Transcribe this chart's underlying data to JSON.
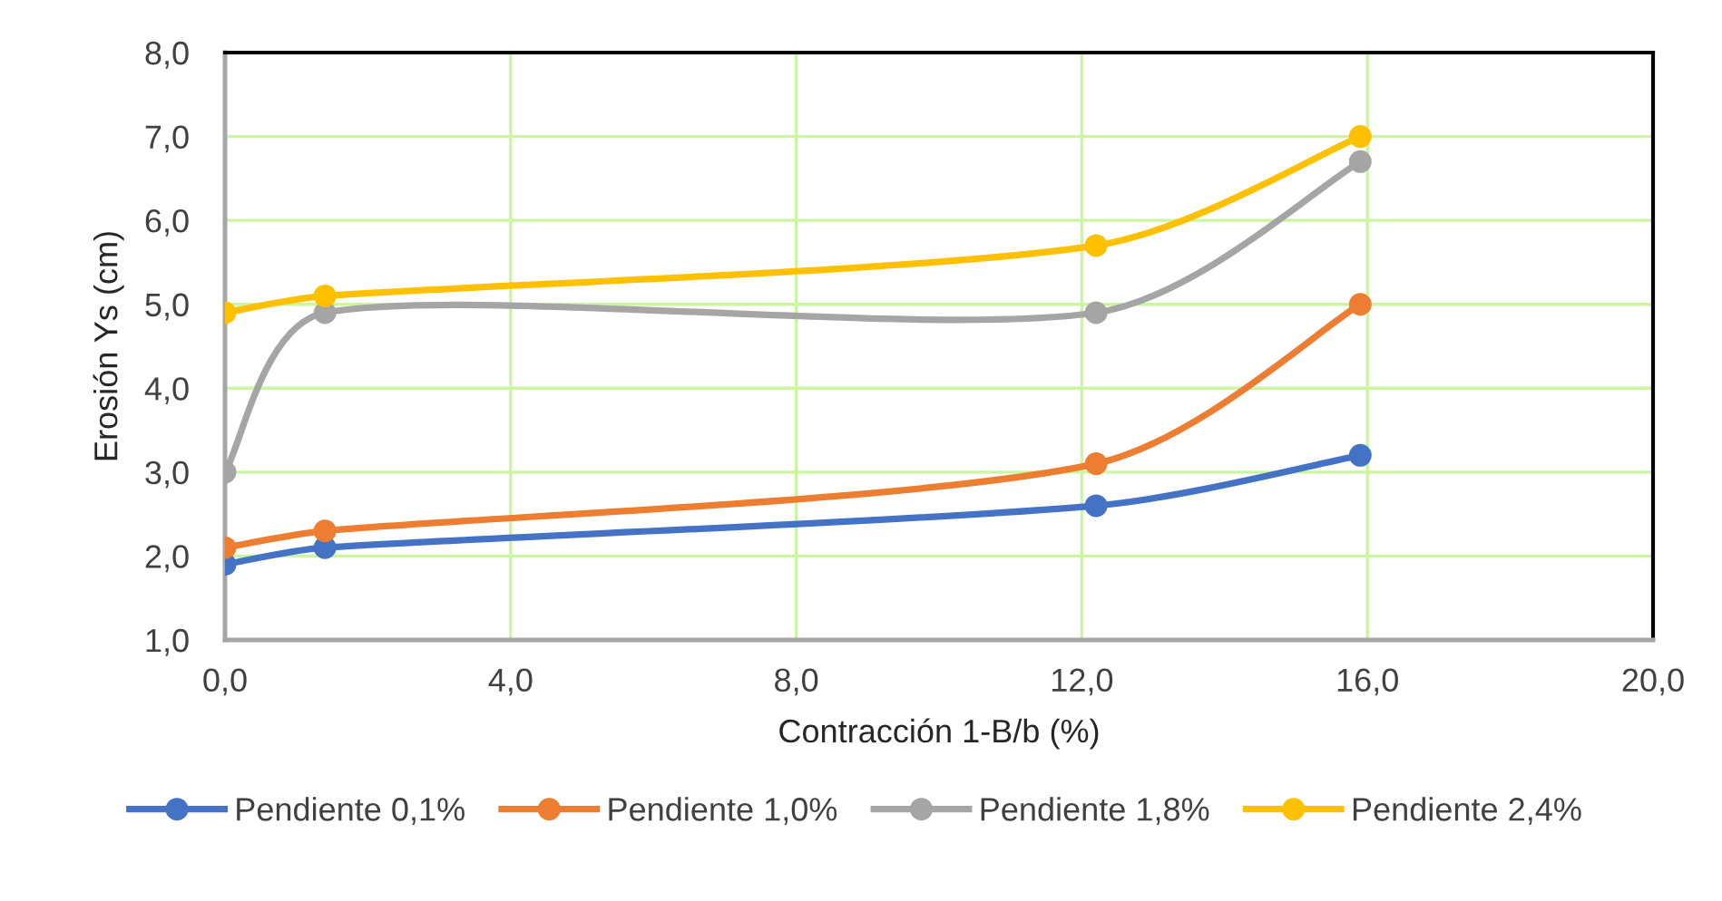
{
  "chart_data": {
    "type": "line",
    "xlabel": "Contracción 1-B/b (%)",
    "ylabel": "Erosión Ys (cm)",
    "x": [
      0,
      1.4,
      12.2,
      15.9
    ],
    "series": [
      {
        "name": "Pendiente 0,1%",
        "color": "#4472c4",
        "values": [
          1.9,
          2.1,
          2.6,
          3.2
        ]
      },
      {
        "name": "Pendiente 1,0%",
        "color": "#ed7d31",
        "values": [
          2.1,
          2.3,
          3.1,
          5.0
        ]
      },
      {
        "name": "Pendiente 1,8%",
        "color": "#a5a5a5",
        "values": [
          3.0,
          4.9,
          4.9,
          6.7
        ]
      },
      {
        "name": "Pendiente 2,4%",
        "color": "#ffc000",
        "values": [
          4.9,
          5.1,
          5.7,
          7.0
        ]
      }
    ],
    "xlim": [
      0,
      20
    ],
    "xticks": [
      {
        "value": 0,
        "label": "0,0"
      },
      {
        "value": 4,
        "label": "4,0"
      },
      {
        "value": 8,
        "label": "8,0"
      },
      {
        "value": 12,
        "label": "12,0"
      },
      {
        "value": 16,
        "label": "16,0"
      },
      {
        "value": 20,
        "label": "20,0"
      }
    ],
    "ylim": [
      1,
      8
    ],
    "yticks": [
      {
        "value": 1,
        "label": "1,0"
      },
      {
        "value": 2,
        "label": "2,0"
      },
      {
        "value": 3,
        "label": "3,0"
      },
      {
        "value": 4,
        "label": "4,0"
      },
      {
        "value": 5,
        "label": "5,0"
      },
      {
        "value": 6,
        "label": "6,0"
      },
      {
        "value": 7,
        "label": "7,0"
      },
      {
        "value": 8,
        "label": "8,0"
      }
    ],
    "grid": true,
    "legend": "bottom",
    "marker": "circle",
    "line_style": "solid"
  }
}
